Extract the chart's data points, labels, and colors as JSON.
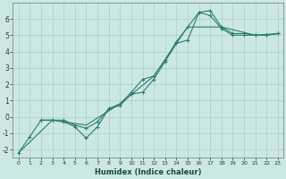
{
  "xlabel": "Humidex (Indice chaleur)",
  "xlim": [
    -0.5,
    23.5
  ],
  "ylim": [
    -2.5,
    7.0
  ],
  "yticks": [
    -2,
    -1,
    0,
    1,
    2,
    3,
    4,
    5,
    6
  ],
  "xticks": [
    0,
    1,
    2,
    3,
    4,
    5,
    6,
    7,
    8,
    9,
    10,
    11,
    12,
    13,
    14,
    15,
    16,
    17,
    18,
    19,
    20,
    21,
    22,
    23
  ],
  "bg_color": "#cce8e5",
  "line_color": "#2d7d6e",
  "grid_color": "#aacccc",
  "line1_x": [
    0,
    1,
    2,
    3,
    4,
    5,
    6,
    7,
    8,
    9,
    10,
    11,
    12,
    13,
    14,
    15,
    16,
    17,
    18,
    19,
    20,
    21,
    22,
    23
  ],
  "line1_y": [
    -2.2,
    -1.2,
    -0.2,
    -0.2,
    -0.2,
    -0.5,
    -0.7,
    -0.3,
    0.5,
    0.8,
    1.5,
    2.3,
    2.5,
    3.5,
    4.6,
    5.5,
    6.4,
    6.5,
    5.5,
    5.1,
    5.1,
    5.0,
    5.0,
    5.1
  ],
  "line2_x": [
    2,
    3,
    4,
    5,
    6,
    7,
    8,
    9,
    10,
    11,
    12,
    13,
    14,
    15,
    16,
    17,
    18,
    19,
    20,
    21,
    22,
    23
  ],
  "line2_y": [
    -0.2,
    -0.2,
    -0.3,
    -0.6,
    -1.3,
    -0.6,
    0.5,
    0.7,
    1.4,
    1.5,
    2.3,
    3.4,
    4.5,
    4.7,
    6.4,
    6.2,
    5.4,
    5.0,
    5.0,
    5.0,
    5.0,
    5.1
  ],
  "line3_x": [
    0,
    3,
    6,
    9,
    12,
    15,
    18,
    21,
    23
  ],
  "line3_y": [
    -2.2,
    -0.2,
    -0.5,
    0.8,
    2.5,
    5.5,
    5.5,
    5.0,
    5.1
  ]
}
